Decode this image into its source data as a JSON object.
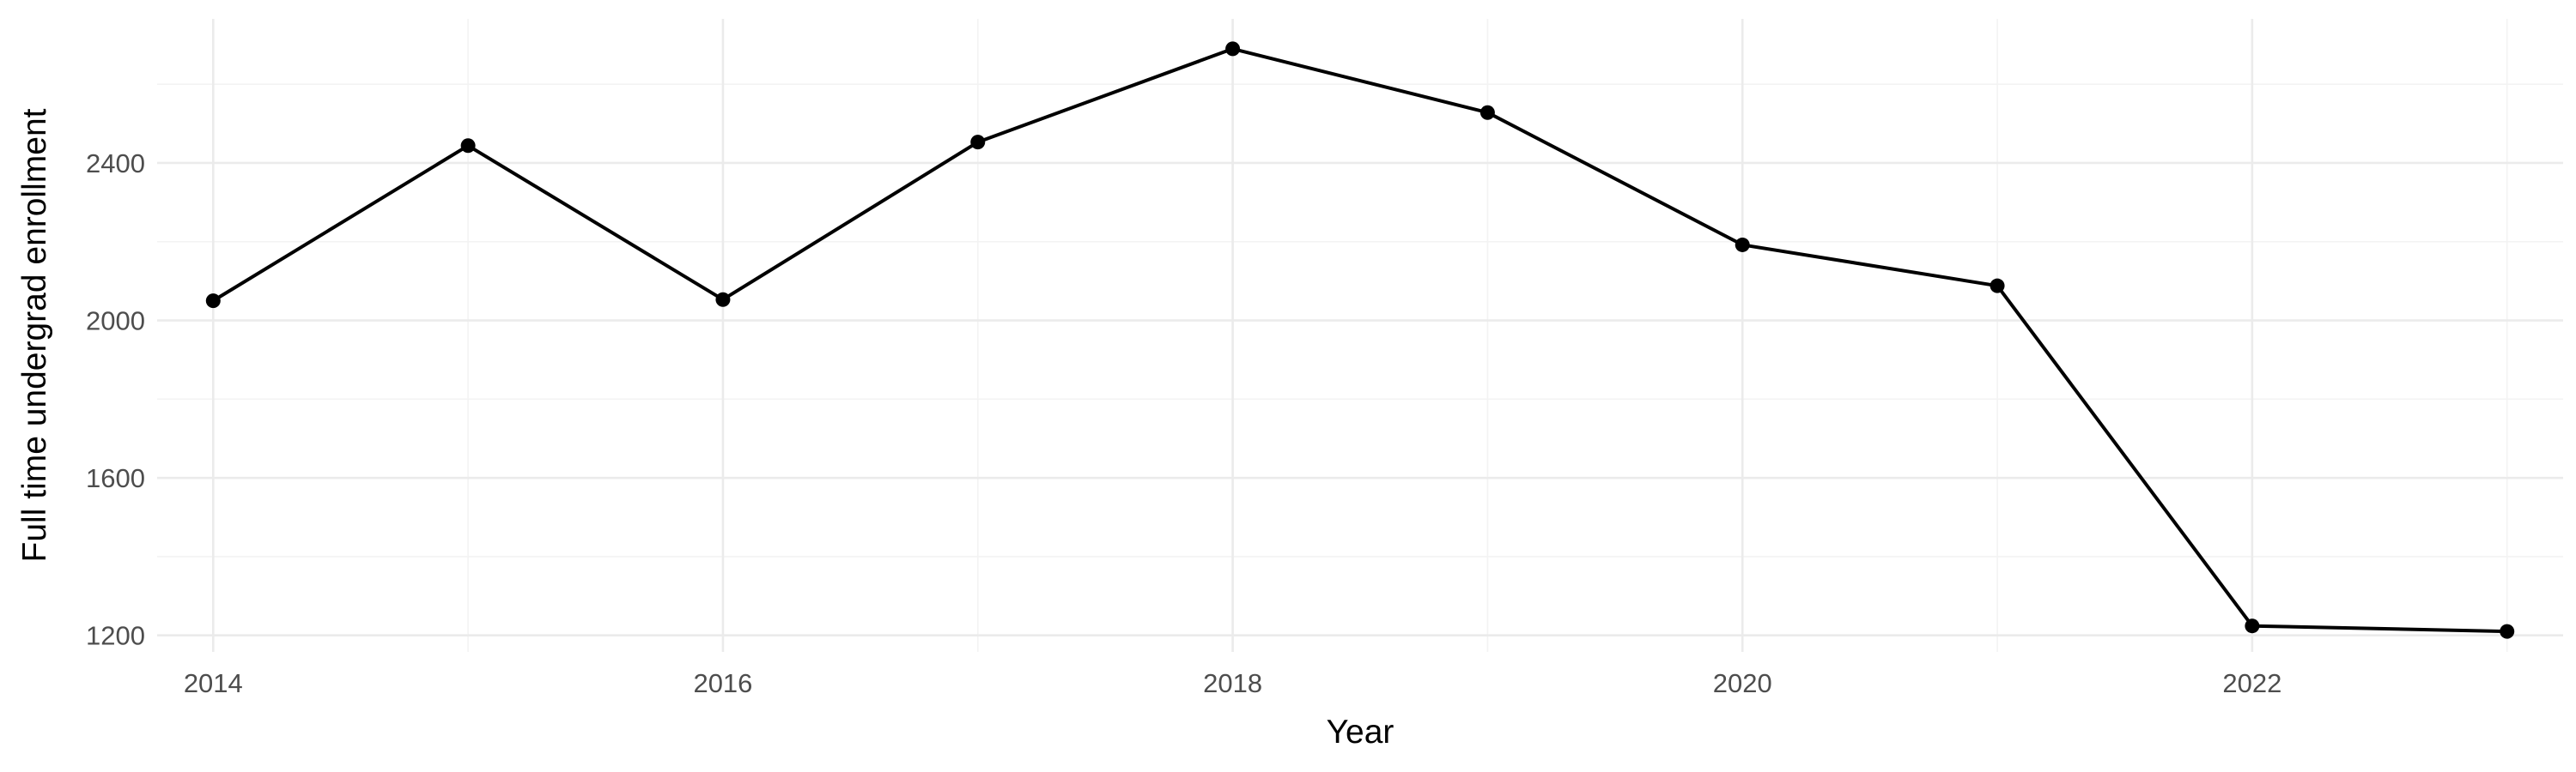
{
  "chart_data": {
    "type": "line",
    "xlabel": "Year",
    "ylabel": "Full time undergrad enrollment",
    "x": [
      2014,
      2015,
      2016,
      2017,
      2018,
      2019,
      2020,
      2021,
      2022,
      2023
    ],
    "series": [
      {
        "values": [
          2050,
          2444,
          2053,
          2453,
          2690,
          2528,
          2192,
          2088,
          1224,
          1210
        ]
      }
    ],
    "xticks": [
      2014,
      2016,
      2018,
      2020,
      2022
    ],
    "yticks": [
      1200,
      1600,
      2000,
      2400
    ],
    "xlim": [
      2013.78,
      2023.22
    ],
    "ylim": [
      1158,
      2766
    ],
    "grid": true,
    "legend": "none",
    "colors": {
      "line": "#000000",
      "point": "#000000",
      "grid_major": "#ebebeb",
      "grid_minor": "#f3f3f3",
      "tick_text": "#4d4d4d"
    }
  }
}
